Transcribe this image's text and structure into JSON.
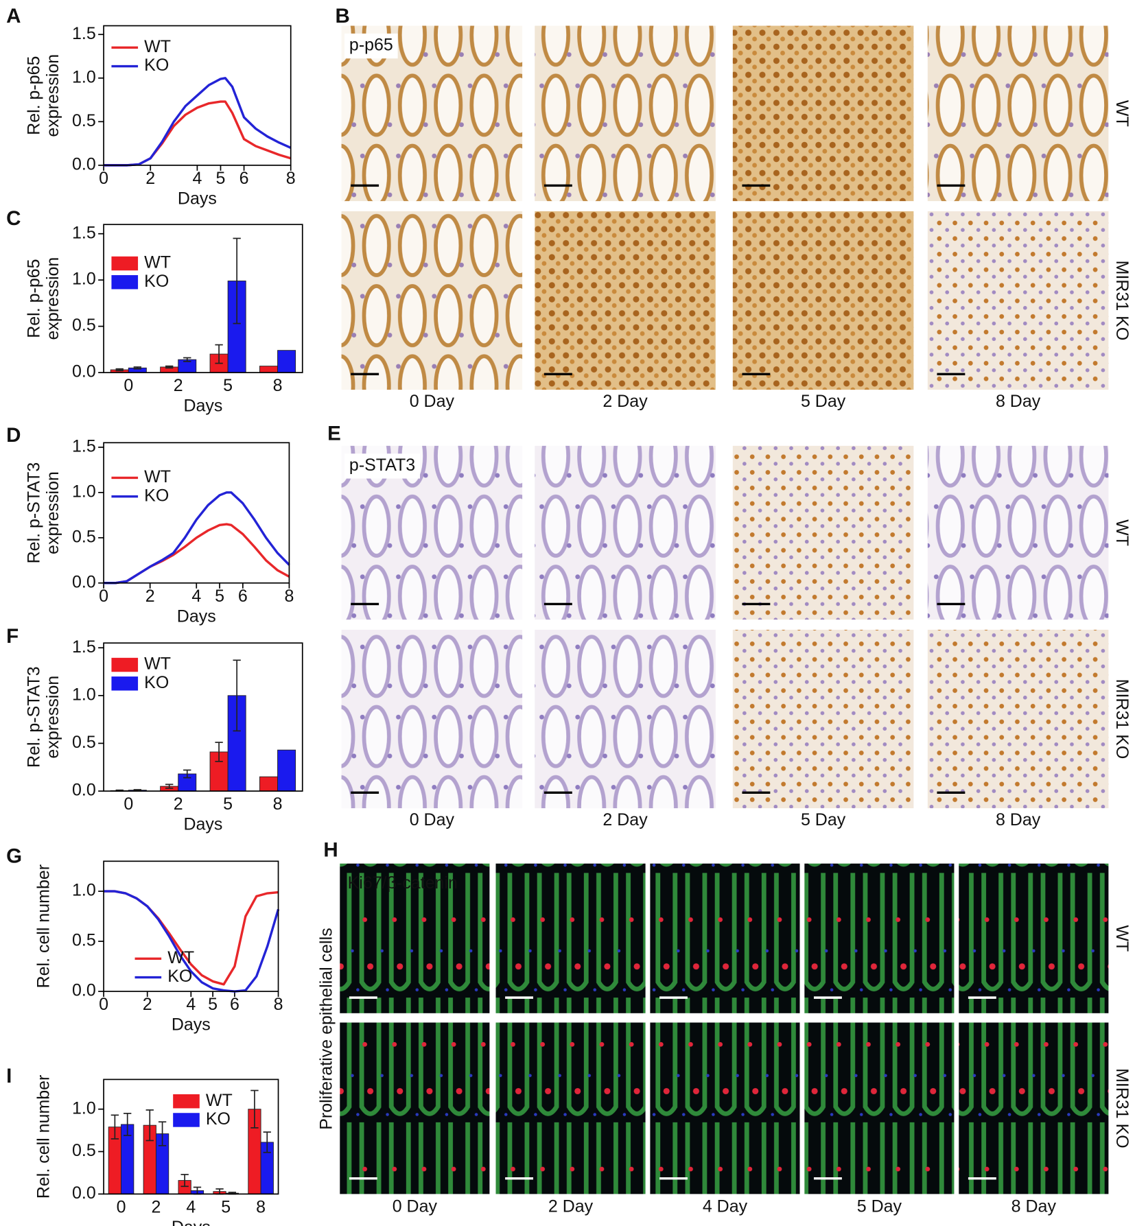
{
  "chart_data": [
    {
      "panel": "A",
      "type": "line",
      "y_label": [
        "Rel. p-p65",
        "expression"
      ],
      "x_label": "Days",
      "x": [
        0,
        1,
        1.5,
        2,
        2.5,
        3,
        3.5,
        4,
        4.5,
        5,
        5.2,
        5.5,
        6,
        6.5,
        7,
        7.5,
        8
      ],
      "series": [
        {
          "name": "WT",
          "color": "#e8272a",
          "values": [
            0,
            0,
            0.01,
            0.08,
            0.25,
            0.45,
            0.58,
            0.66,
            0.71,
            0.73,
            0.73,
            0.6,
            0.3,
            0.22,
            0.17,
            0.12,
            0.08
          ]
        },
        {
          "name": "KO",
          "color": "#2323d6",
          "values": [
            0,
            0,
            0.01,
            0.08,
            0.27,
            0.5,
            0.68,
            0.8,
            0.92,
            0.99,
            1.0,
            0.9,
            0.55,
            0.42,
            0.33,
            0.26,
            0.2
          ]
        }
      ],
      "xlim": [
        0,
        8
      ],
      "ylim": [
        0,
        1.6
      ],
      "xticks": [
        0,
        2,
        4,
        5,
        6,
        8
      ],
      "yticks": [
        {
          "value": 0,
          "label": "0.0"
        },
        {
          "value": 0.5,
          "label": "0.5"
        },
        {
          "value": 1,
          "label": "1.0"
        },
        {
          "value": 1.5,
          "label": "1.5"
        }
      ],
      "legend": "upper left"
    },
    {
      "panel": "C",
      "type": "bar",
      "y_label": [
        "Rel. p-p65",
        "expression"
      ],
      "x_label": "Days",
      "categories": [
        "0",
        "2",
        "5",
        "8"
      ],
      "series": [
        {
          "name": "WT",
          "color": "#ee1c24",
          "values": [
            0.03,
            0.06,
            0.2,
            0.07
          ],
          "errors": [
            0.01,
            0.01,
            0.1,
            null
          ]
        },
        {
          "name": "KO",
          "color": "#1a1aee",
          "values": [
            0.05,
            0.14,
            0.99,
            0.24
          ],
          "errors": [
            0.01,
            0.02,
            0.46,
            null
          ]
        }
      ],
      "ylim": [
        0,
        1.6
      ],
      "yticks": [
        {
          "value": 0,
          "label": "0.0"
        },
        {
          "value": 0.5,
          "label": "0.5"
        },
        {
          "value": 1,
          "label": "1.0"
        },
        {
          "value": 1.5,
          "label": "1.5"
        }
      ],
      "legend": "center left"
    },
    {
      "panel": "D",
      "type": "line",
      "y_label": [
        "Rel. p-STAT3",
        "expression"
      ],
      "x_label": "Days",
      "x": [
        0,
        0.5,
        1,
        1.5,
        2,
        2.5,
        3,
        3.5,
        4,
        4.5,
        5,
        5.3,
        5.5,
        6,
        6.5,
        7,
        7.5,
        8
      ],
      "series": [
        {
          "name": "WT",
          "color": "#e8272a",
          "values": [
            0,
            0,
            0.02,
            0.1,
            0.18,
            0.24,
            0.31,
            0.4,
            0.5,
            0.58,
            0.64,
            0.65,
            0.64,
            0.54,
            0.4,
            0.25,
            0.14,
            0.07
          ]
        },
        {
          "name": "KO",
          "color": "#2323d6",
          "values": [
            0,
            0,
            0.02,
            0.1,
            0.18,
            0.25,
            0.33,
            0.5,
            0.7,
            0.86,
            0.97,
            1.0,
            1.0,
            0.88,
            0.7,
            0.5,
            0.33,
            0.2
          ]
        }
      ],
      "xlim": [
        0,
        8
      ],
      "ylim": [
        0,
        1.55
      ],
      "xticks": [
        0,
        2,
        4,
        5,
        6,
        8
      ],
      "yticks": [
        {
          "value": 0,
          "label": "0.0"
        },
        {
          "value": 0.5,
          "label": "0.5"
        },
        {
          "value": 1,
          "label": "1.0"
        },
        {
          "value": 1.5,
          "label": "1.5"
        }
      ],
      "legend": "center left"
    },
    {
      "panel": "F",
      "type": "bar",
      "y_label": [
        "Rel. p-STAT3",
        "expression"
      ],
      "x_label": "Days",
      "categories": [
        "0",
        "2",
        "5",
        "8"
      ],
      "series": [
        {
          "name": "WT",
          "color": "#ee1c24",
          "values": [
            0.005,
            0.05,
            0.41,
            0.15
          ],
          "errors": [
            0.005,
            0.02,
            0.1,
            null
          ]
        },
        {
          "name": "KO",
          "color": "#1a1aee",
          "values": [
            0.01,
            0.18,
            1.0,
            0.43
          ],
          "errors": [
            0.005,
            0.04,
            0.37,
            null
          ]
        }
      ],
      "ylim": [
        0,
        1.55
      ],
      "yticks": [
        {
          "value": 0,
          "label": "0.0"
        },
        {
          "value": 0.5,
          "label": "0.5"
        },
        {
          "value": 1,
          "label": "1.0"
        },
        {
          "value": 1.5,
          "label": "1.5"
        }
      ],
      "legend": "upper left"
    },
    {
      "panel": "G",
      "type": "line",
      "y_label": [
        "Rel. cell number"
      ],
      "x_label": "Days",
      "x": [
        0,
        0.5,
        1,
        1.5,
        2,
        2.5,
        3,
        3.5,
        4,
        4.5,
        5,
        5.5,
        6,
        6.5,
        7,
        7.5,
        8
      ],
      "series": [
        {
          "name": "WT",
          "color": "#e8272a",
          "values": [
            1,
            1,
            0.98,
            0.93,
            0.85,
            0.73,
            0.58,
            0.42,
            0.27,
            0.16,
            0.1,
            0.07,
            0.25,
            0.75,
            0.95,
            0.98,
            0.99
          ]
        },
        {
          "name": "KO",
          "color": "#2323d6",
          "values": [
            1,
            1,
            0.98,
            0.93,
            0.85,
            0.72,
            0.55,
            0.36,
            0.2,
            0.09,
            0.03,
            0.01,
            0,
            0.01,
            0.15,
            0.45,
            0.82
          ]
        }
      ],
      "xlim": [
        0,
        8
      ],
      "ylim": [
        0,
        1.3
      ],
      "xticks": [
        0,
        2,
        4,
        5,
        6,
        8
      ],
      "yticks": [
        {
          "value": 0,
          "label": "0.0"
        },
        {
          "value": 0.5,
          "label": "0.5"
        },
        {
          "value": 1,
          "label": "1.0"
        }
      ],
      "legend": "lower center"
    },
    {
      "panel": "I",
      "type": "bar",
      "y_label": [
        "Rel. cell number"
      ],
      "x_label": "Days",
      "categories": [
        "0",
        "2",
        "4",
        "5",
        "8"
      ],
      "series": [
        {
          "name": "WT",
          "color": "#ee1c24",
          "values": [
            0.79,
            0.81,
            0.16,
            0.03,
            1.0
          ],
          "errors": [
            0.14,
            0.18,
            0.07,
            0.03,
            0.22
          ]
        },
        {
          "name": "KO",
          "color": "#1a1aee",
          "values": [
            0.82,
            0.71,
            0.04,
            0.01,
            0.61
          ],
          "errors": [
            0.13,
            0.14,
            0.04,
            0.01,
            0.12
          ]
        }
      ],
      "ylim": [
        0,
        1.35
      ],
      "yticks": [
        {
          "value": 0,
          "label": "0.0"
        },
        {
          "value": 0.5,
          "label": "0.5"
        },
        {
          "value": 1,
          "label": "1.0"
        }
      ],
      "legend": "upper right"
    }
  ],
  "figures": [
    {
      "panel": "B",
      "stain": [
        "p-p65"
      ],
      "rows": [
        "WT",
        "MIR31 KO"
      ],
      "columns": [
        "0 Day",
        "2 Day",
        "5 Day",
        "8 Day"
      ]
    },
    {
      "panel": "E",
      "stain": [
        "p-STAT3"
      ],
      "rows": [
        "WT",
        "MIR31 KO"
      ],
      "columns": [
        "0 Day",
        "2 Day",
        "5 Day",
        "8 Day"
      ]
    },
    {
      "panel": "H",
      "stain": [
        "Ki67",
        "/β-catenin"
      ],
      "side_label": "Proliferative epithelial cells",
      "rows": [
        "WT",
        "MIR31 KO"
      ],
      "columns": [
        "0 Day",
        "2 Day",
        "4 Day",
        "5 Day",
        "8 Day"
      ]
    }
  ]
}
